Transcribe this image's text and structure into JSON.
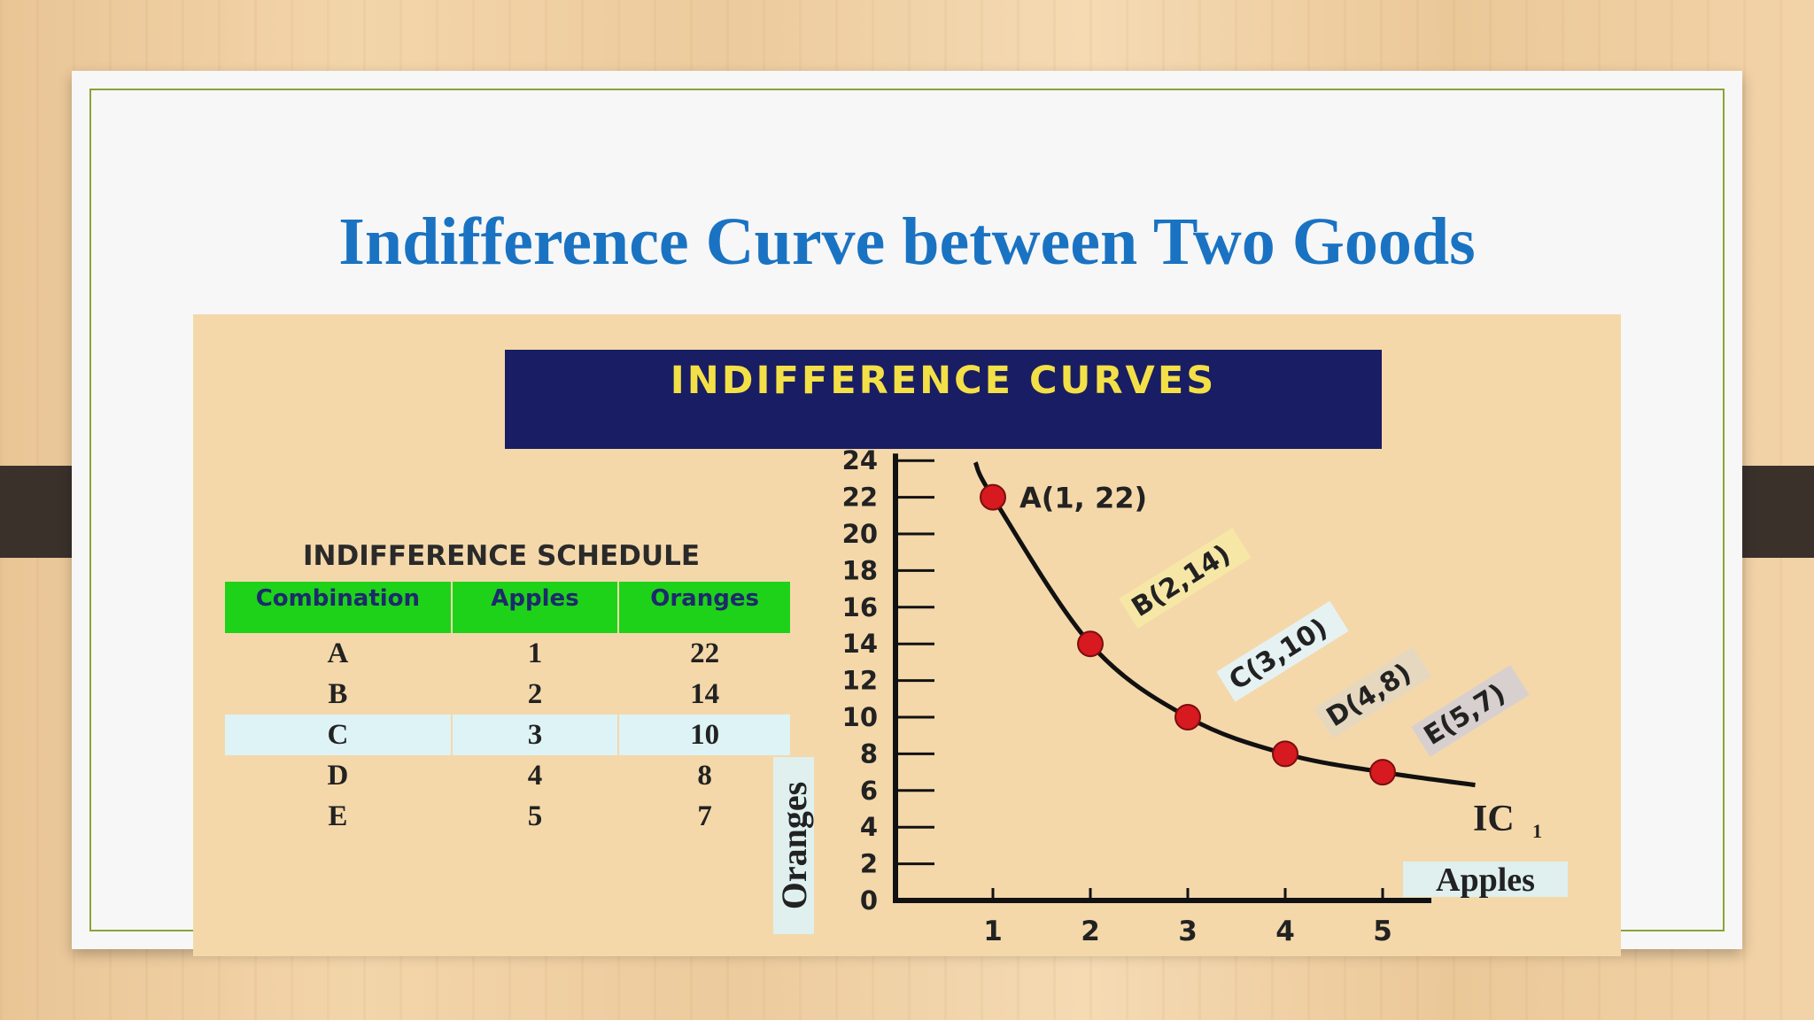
{
  "slide": {
    "title": "Indifference Curve between Two Goods"
  },
  "banner": {
    "text": "INDIFFERENCE CURVES"
  },
  "schedule": {
    "title": "INDIFFERENCE SCHEDULE",
    "headers": [
      "Combination",
      "Apples",
      "Oranges"
    ],
    "rows": [
      [
        "A",
        "1",
        "22"
      ],
      [
        "B",
        "2",
        "14"
      ],
      [
        "C",
        "3",
        "10"
      ],
      [
        "D",
        "4",
        "8"
      ],
      [
        "E",
        "5",
        "7"
      ]
    ],
    "highlight_row": 2
  },
  "chart_data": {
    "type": "line",
    "title": "INDIFFERENCE CURVES",
    "xlabel": "Apples",
    "ylabel": "Oranges",
    "xlim": [
      0,
      5.5
    ],
    "ylim": [
      0,
      24
    ],
    "x_ticks": [
      "1",
      "2",
      "3",
      "4",
      "5"
    ],
    "y_ticks": [
      "0",
      "2",
      "4",
      "6",
      "8",
      "10",
      "12",
      "14",
      "16",
      "18",
      "20",
      "22",
      "24"
    ],
    "curve_label": "IC",
    "curve_label_sub": "1",
    "points": [
      {
        "label": "A(1, 22)",
        "x": 1,
        "y": 22
      },
      {
        "label": "B(2,14)",
        "x": 2,
        "y": 14
      },
      {
        "label": "C(3,10)",
        "x": 3,
        "y": 10
      },
      {
        "label": "D(4,8)",
        "x": 4,
        "y": 8
      },
      {
        "label": "E(5,7)",
        "x": 5,
        "y": 7
      }
    ],
    "colors": {
      "curve": "#111111",
      "point": "#d71920",
      "label_b": "#f7e7a6",
      "label_c": "#e6f2f2",
      "label_d": "#e6d8be",
      "label_e": "#d8cfcf"
    }
  }
}
